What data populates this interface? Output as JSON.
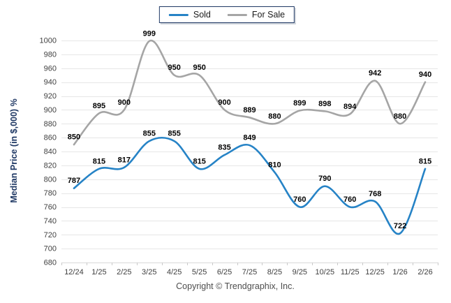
{
  "chart_data": {
    "type": "line",
    "title": "",
    "xlabel": "",
    "ylabel": "Median Price (in $,000) %",
    "categories": [
      "12/24",
      "1/25",
      "2/25",
      "3/25",
      "4/25",
      "5/25",
      "6/25",
      "7/25",
      "8/25",
      "9/25",
      "10/25",
      "11/25",
      "12/25",
      "1/26",
      "2/26"
    ],
    "series": [
      {
        "name": "Sold",
        "color": "#2683C6",
        "values": [
          787,
          815,
          817,
          855,
          855,
          815,
          835,
          849,
          810,
          760,
          790,
          760,
          768,
          722,
          815
        ]
      },
      {
        "name": "For Sale",
        "color": "#A5A5A5",
        "values": [
          850,
          895,
          900,
          999,
          950,
          950,
          900,
          889,
          880,
          899,
          898,
          894,
          942,
          880,
          940
        ]
      }
    ],
    "ylim": [
      680,
      1000
    ],
    "ytick_step": 20,
    "grid": "horizontal",
    "legend_position": "top",
    "data_labels": true,
    "line_style": "smooth",
    "styles": {
      "grid_color": "#e6e6e6",
      "axis_color": "#d9d9d9",
      "tick_color": "#c9c9c9",
      "tick_label_color": "#404040",
      "data_label_color": "#000000",
      "y_title_color": "#1f3864",
      "legend_border_color": "#1f3864"
    }
  },
  "footer": {
    "copyright": "Copyright © Trendgraphix, Inc."
  }
}
